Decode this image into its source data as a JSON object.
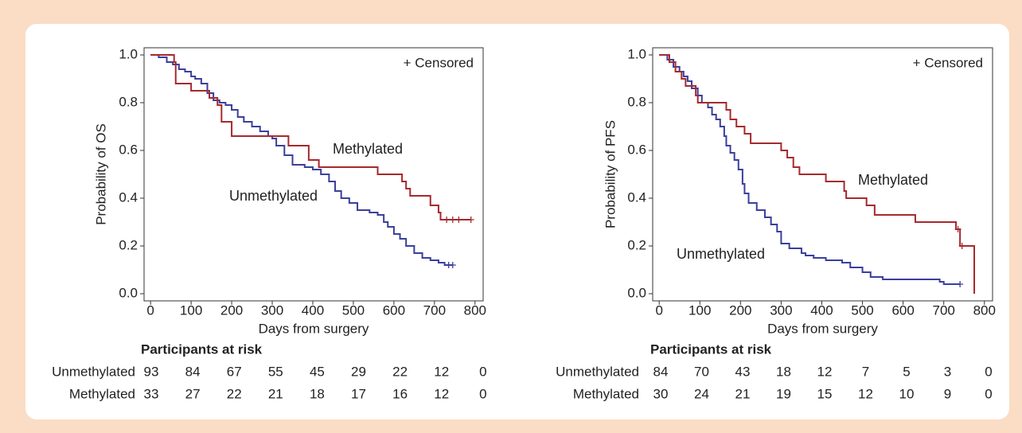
{
  "chart_data": [
    {
      "type": "step",
      "xlabel": "Days from surgery",
      "ylabel": "Probability of OS",
      "legend_text": "+ Censored",
      "xlim": [
        -16,
        820
      ],
      "ylim": [
        -0.03,
        1.03
      ],
      "xticks": [
        0,
        100,
        200,
        300,
        400,
        500,
        600,
        700,
        800
      ],
      "yticks": [
        {
          "value": 0,
          "label": "0.0"
        },
        0.2,
        0.4,
        0.6,
        0.8,
        {
          "value": 1,
          "label": "1.0"
        }
      ],
      "series": [
        {
          "name": "Unmethylated",
          "color": "#3b3f9b",
          "x": [
            0,
            20,
            40,
            55,
            70,
            85,
            100,
            110,
            125,
            140,
            155,
            170,
            185,
            200,
            215,
            230,
            250,
            270,
            290,
            300,
            310,
            330,
            350,
            380,
            400,
            420,
            440,
            455,
            470,
            490,
            510,
            540,
            560,
            575,
            585,
            600,
            615,
            630,
            650,
            670,
            690,
            710,
            725,
            745
          ],
          "values": [
            1.0,
            0.99,
            0.97,
            0.96,
            0.94,
            0.93,
            0.91,
            0.9,
            0.88,
            0.84,
            0.81,
            0.8,
            0.79,
            0.77,
            0.74,
            0.72,
            0.7,
            0.68,
            0.66,
            0.65,
            0.62,
            0.58,
            0.54,
            0.53,
            0.52,
            0.5,
            0.47,
            0.43,
            0.4,
            0.38,
            0.35,
            0.34,
            0.33,
            0.3,
            0.28,
            0.25,
            0.23,
            0.2,
            0.17,
            0.15,
            0.14,
            0.13,
            0.12,
            0.12
          ],
          "censored": [
            735,
            745
          ]
        },
        {
          "name": "Methylated",
          "color": "#a52a2e",
          "x": [
            0,
            58,
            62,
            100,
            145,
            165,
            175,
            200,
            340,
            390,
            415,
            560,
            620,
            630,
            640,
            690,
            710,
            715,
            790
          ],
          "values": [
            1.0,
            0.97,
            0.88,
            0.85,
            0.82,
            0.79,
            0.72,
            0.66,
            0.62,
            0.56,
            0.53,
            0.5,
            0.47,
            0.44,
            0.41,
            0.37,
            0.34,
            0.31,
            0.31
          ],
          "censored": [
            730,
            745,
            760,
            790
          ]
        }
      ],
      "risk_table": {
        "title": "Participants at risk",
        "rows": [
          {
            "name": "Unmethylated",
            "color": "#3a4aa6",
            "values": [
              "93",
              "84",
              "67",
              "55",
              "45",
              "29",
              "22",
              "12",
              "0"
            ]
          },
          {
            "name": "Methylated",
            "color": "#d9262c",
            "values": [
              "33",
              "27",
              "22",
              "21",
              "18",
              "17",
              "16",
              "12",
              "0"
            ]
          }
        ]
      }
    },
    {
      "type": "step",
      "xlabel": "Days from surgery",
      "ylabel": "Probability of PFS",
      "legend_text": "+ Censored",
      "xlim": [
        -16,
        820
      ],
      "ylim": [
        -0.03,
        1.03
      ],
      "xticks": [
        0,
        100,
        200,
        300,
        400,
        500,
        600,
        700,
        800
      ],
      "yticks": [
        {
          "value": 0,
          "label": "0.0"
        },
        0.2,
        0.4,
        0.6,
        0.8,
        {
          "value": 1,
          "label": "1.0"
        }
      ],
      "series": [
        {
          "name": "Unmethylated",
          "color": "#3b3f9b",
          "x": [
            0,
            20,
            35,
            50,
            60,
            70,
            80,
            95,
            105,
            120,
            130,
            140,
            150,
            160,
            165,
            175,
            185,
            195,
            205,
            210,
            220,
            240,
            260,
            275,
            290,
            300,
            320,
            350,
            360,
            380,
            410,
            450,
            470,
            500,
            520,
            550,
            690,
            700,
            740
          ],
          "values": [
            1.0,
            0.98,
            0.95,
            0.93,
            0.91,
            0.89,
            0.86,
            0.83,
            0.8,
            0.78,
            0.75,
            0.73,
            0.7,
            0.66,
            0.62,
            0.59,
            0.56,
            0.52,
            0.46,
            0.42,
            0.38,
            0.35,
            0.32,
            0.29,
            0.26,
            0.21,
            0.19,
            0.17,
            0.16,
            0.15,
            0.14,
            0.13,
            0.11,
            0.09,
            0.07,
            0.06,
            0.05,
            0.04,
            0.04
          ],
          "censored": [
            740
          ]
        },
        {
          "name": "Methylated",
          "color": "#a52a2e",
          "x": [
            0,
            25,
            40,
            55,
            65,
            90,
            95,
            165,
            175,
            190,
            210,
            225,
            300,
            315,
            330,
            345,
            410,
            455,
            460,
            510,
            530,
            630,
            730,
            740,
            775
          ],
          "values": [
            1.0,
            0.97,
            0.93,
            0.9,
            0.87,
            0.83,
            0.8,
            0.77,
            0.73,
            0.7,
            0.67,
            0.63,
            0.6,
            0.57,
            0.53,
            0.5,
            0.47,
            0.43,
            0.4,
            0.37,
            0.33,
            0.3,
            0.27,
            0.2,
            0.0
          ],
          "censored": [
            735,
            745
          ]
        }
      ],
      "risk_table": {
        "title": "Participants at risk",
        "rows": [
          {
            "name": "Unmethylated",
            "color": "#3a4aa6",
            "values": [
              "84",
              "70",
              "43",
              "18",
              "12",
              "7",
              "5",
              "3",
              "0"
            ]
          },
          {
            "name": "Methylated",
            "color": "#d9262c",
            "values": [
              "30",
              "24",
              "21",
              "19",
              "15",
              "12",
              "10",
              "9",
              "0"
            ]
          }
        ]
      }
    }
  ]
}
